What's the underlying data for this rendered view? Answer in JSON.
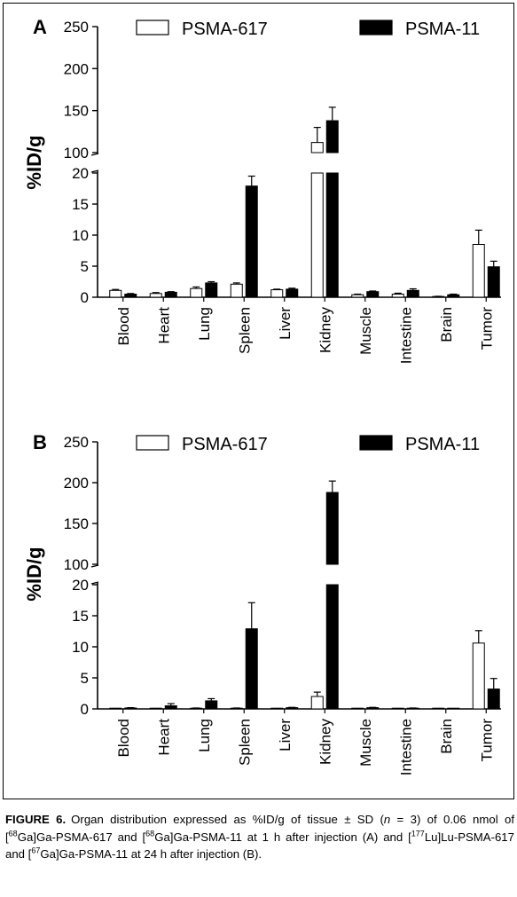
{
  "chart_data": [
    {
      "type": "bar",
      "panel_label": "A",
      "ylabel": "%ID/g",
      "broken_axis": true,
      "y_lower_range": [
        0,
        20
      ],
      "y_upper_range": [
        100,
        250
      ],
      "y_lower_ticks": [
        "0",
        "5",
        "10",
        "15",
        "20"
      ],
      "y_upper_ticks": [
        "100",
        "150",
        "200",
        "250"
      ],
      "categories": [
        "Blood",
        "Heart",
        "Lung",
        "Spleen",
        "Liver",
        "Kidney",
        "Muscle",
        "Intestine",
        "Brain",
        "Tumor"
      ],
      "series": [
        {
          "name": "PSMA-617",
          "color": "#ffffff",
          "values": [
            1.1,
            0.6,
            1.4,
            2.1,
            1.2,
            112,
            0.4,
            0.5,
            0.1,
            8.5
          ],
          "errors": [
            0.15,
            0.15,
            0.25,
            0.2,
            0.1,
            18,
            0.1,
            0.15,
            0.05,
            2.3
          ]
        },
        {
          "name": "PSMA-11",
          "color": "#000000",
          "values": [
            0.5,
            0.8,
            2.3,
            17.9,
            1.3,
            138,
            0.9,
            1.1,
            0.4,
            4.9
          ],
          "errors": [
            0.1,
            0.1,
            0.2,
            1.6,
            0.15,
            16,
            0.1,
            0.25,
            0.1,
            0.9
          ]
        }
      ],
      "legend": "top"
    },
    {
      "type": "bar",
      "panel_label": "B",
      "ylabel": "%ID/g",
      "broken_axis": true,
      "y_lower_range": [
        0,
        20
      ],
      "y_upper_range": [
        100,
        250
      ],
      "y_lower_ticks": [
        "0",
        "5",
        "10",
        "15",
        "20"
      ],
      "y_upper_ticks": [
        "100",
        "150",
        "200",
        "250"
      ],
      "categories": [
        "Blood",
        "Heart",
        "Lung",
        "Spleen",
        "Liver",
        "Kidney",
        "Muscle",
        "Intestine",
        "Brain",
        "Tumor"
      ],
      "series": [
        {
          "name": "PSMA-617",
          "color": "#ffffff",
          "values": [
            0.05,
            0.05,
            0.1,
            0.1,
            0.05,
            2.0,
            0.05,
            0.05,
            0.05,
            10.6
          ],
          "errors": [
            0.02,
            0.02,
            0.05,
            0.05,
            0.02,
            0.7,
            0.02,
            0.02,
            0.02,
            2.0
          ]
        },
        {
          "name": "PSMA-11",
          "color": "#000000",
          "values": [
            0.15,
            0.5,
            1.3,
            12.9,
            0.2,
            188,
            0.2,
            0.1,
            0.0,
            3.2
          ],
          "errors": [
            0.05,
            0.35,
            0.35,
            4.2,
            0.05,
            14,
            0.05,
            0.05,
            0.0,
            1.7
          ]
        }
      ],
      "legend": "top"
    }
  ],
  "caption": {
    "label": "FIGURE 6.",
    "text_parts": [
      "Organ distribution expressed as %ID/g of tissue ± SD (",
      "n",
      " = 3) of 0.06 nmol of [",
      "68",
      "Ga]Ga-PSMA-617 and [",
      "68",
      "Ga]Ga-PSMA-11 at 1 h after injection (A) and [",
      "177",
      "Lu]Lu-PSMA-617 and [",
      "67",
      "Ga]Ga-PSMA-11 at 24 h after injection (B)."
    ]
  }
}
